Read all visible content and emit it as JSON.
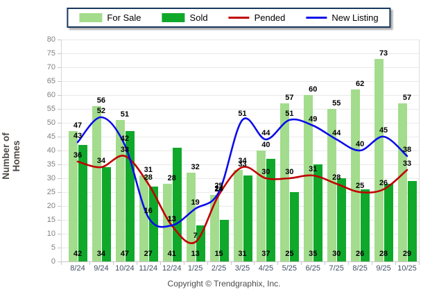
{
  "chart_data": {
    "type": "combo-bar-line",
    "title": "",
    "ylabel": "Number of Homes",
    "ylim": [
      0,
      80
    ],
    "ytick_step": 5,
    "grid": "horizontal",
    "legend_position": "top-center",
    "categories": [
      "8/24",
      "9/24",
      "10/24",
      "11/24",
      "12/24",
      "1/25",
      "2/25",
      "3/25",
      "4/25",
      "5/25",
      "6/25",
      "7/25",
      "8/25",
      "9/25",
      "10/25"
    ],
    "series": [
      {
        "name": "For Sale",
        "type": "bar",
        "color": "#A3DC8D",
        "value_labels": "above-bar",
        "values": [
          47,
          56,
          51,
          31,
          28,
          32,
          24,
          33,
          40,
          57,
          60,
          55,
          62,
          73,
          57
        ]
      },
      {
        "name": "Sold",
        "type": "bar",
        "color": "#10A82B",
        "value_labels": "base",
        "values": [
          42,
          34,
          47,
          27,
          41,
          13,
          15,
          31,
          37,
          25,
          35,
          30,
          26,
          28,
          29
        ]
      },
      {
        "name": "Pended",
        "type": "line",
        "color": "#C00000",
        "value_labels": "above-point",
        "values": [
          36,
          34,
          38,
          28,
          13,
          7,
          24,
          34,
          30,
          30,
          31,
          28,
          25,
          26,
          33
        ]
      },
      {
        "name": "New Listing",
        "type": "line",
        "color": "#0B0BEA",
        "value_labels": "above-point",
        "values": [
          43,
          52,
          42,
          16,
          13,
          19,
          25,
          51,
          44,
          51,
          49,
          44,
          40,
          45,
          38
        ]
      }
    ],
    "axis_colors": {
      "grid": "#E9E9E9",
      "axis": "#C6C6C6",
      "y_tick_text": "#7F7F7F",
      "x_tick_text": "#414E63",
      "value_label_text": "#000000",
      "y_axis_title_text": "#4F4A44",
      "legend_border": "#17375E"
    }
  },
  "footer": {
    "copyright": "Copyright © Trendgraphix, Inc."
  }
}
